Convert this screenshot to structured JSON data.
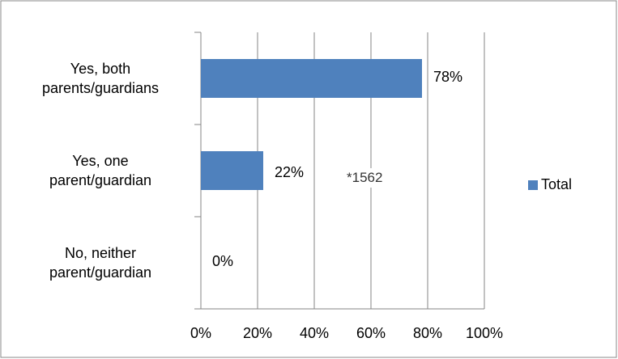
{
  "chart_data": {
    "type": "bar",
    "orientation": "horizontal",
    "categories": [
      "Yes, both\nparents/guardians",
      "Yes, one\nparent/guardian",
      "No, neither\nparent/guardian"
    ],
    "series": [
      {
        "name": "Total",
        "color": "#4f81bd",
        "values": [
          78,
          22,
          0
        ],
        "value_labels": [
          "78%",
          "22%",
          "0%"
        ]
      }
    ],
    "xlim": [
      0,
      100
    ],
    "xticks": [
      {
        "value": 0,
        "label": "0%"
      },
      {
        "value": 20,
        "label": "20%"
      },
      {
        "value": 40,
        "label": "40%"
      },
      {
        "value": 60,
        "label": "60%"
      },
      {
        "value": 80,
        "label": "80%"
      },
      {
        "value": 100,
        "label": "100%"
      }
    ],
    "grid": true,
    "legend": "right",
    "annotations": [
      "*1562"
    ]
  }
}
